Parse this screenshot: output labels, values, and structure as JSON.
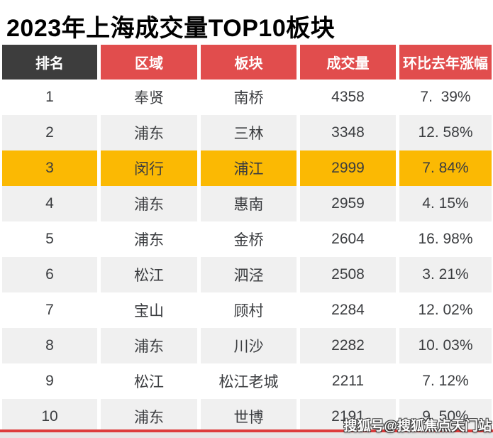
{
  "title": "2023年上海成交量TOP10板块",
  "watermark": "搜狐号@搜狐焦点天门站",
  "colors": {
    "header_dark": "#3d3d3d",
    "header_red": "#e14d4d",
    "highlight_yellow": "#fbb903",
    "row_gray": "#f0f0f0",
    "bottom_line_red": "#dd3c3c",
    "bottom_strip_gray": "#e6e6e6",
    "cell_text": "#3b3d40"
  },
  "table": {
    "columns": [
      "排名",
      "区域",
      "板块",
      "成交量",
      "环比去年涨幅"
    ],
    "rows": [
      {
        "rank": "1",
        "region": "奉贤",
        "block": "南桥",
        "volume": "4358",
        "change": "7.  39%",
        "highlight": false
      },
      {
        "rank": "2",
        "region": "浦东",
        "block": "三林",
        "volume": "3348",
        "change": "12. 58%",
        "highlight": false
      },
      {
        "rank": "3",
        "region": "闵行",
        "block": "浦江",
        "volume": "2999",
        "change": "7. 84%",
        "highlight": true
      },
      {
        "rank": "4",
        "region": "浦东",
        "block": "惠南",
        "volume": "2959",
        "change": "4. 15%",
        "highlight": false
      },
      {
        "rank": "5",
        "region": "浦东",
        "block": "金桥",
        "volume": "2604",
        "change": "16. 98%",
        "highlight": false
      },
      {
        "rank": "6",
        "region": "松江",
        "block": "泗泾",
        "volume": "2508",
        "change": "3. 21%",
        "highlight": false
      },
      {
        "rank": "7",
        "region": "宝山",
        "block": "顾村",
        "volume": "2284",
        "change": "12. 02%",
        "highlight": false
      },
      {
        "rank": "8",
        "region": "浦东",
        "block": "川沙",
        "volume": "2282",
        "change": "10. 03%",
        "highlight": false
      },
      {
        "rank": "9",
        "region": "松江",
        "block": "松江老城",
        "volume": "2211",
        "change": "7. 12%",
        "highlight": false
      },
      {
        "rank": "10",
        "region": "浦东",
        "block": "世博",
        "volume": "2191",
        "change": "9. 50%",
        "highlight": false
      }
    ]
  },
  "chart_data": {
    "type": "table",
    "title": "2023年上海成交量TOP10板块",
    "columns": [
      "排名",
      "区域",
      "板块",
      "成交量",
      "环比去年涨幅"
    ],
    "rows": [
      [
        1,
        "奉贤",
        "南桥",
        4358,
        "7.39%"
      ],
      [
        2,
        "浦东",
        "三林",
        3348,
        "12.58%"
      ],
      [
        3,
        "闵行",
        "浦江",
        2999,
        "7.84%"
      ],
      [
        4,
        "浦东",
        "惠南",
        2959,
        "4.15%"
      ],
      [
        5,
        "浦东",
        "金桥",
        2604,
        "16.98%"
      ],
      [
        6,
        "松江",
        "泗泾",
        2508,
        "3.21%"
      ],
      [
        7,
        "宝山",
        "顾村",
        2284,
        "12.02%"
      ],
      [
        8,
        "浦东",
        "川沙",
        2282,
        "10.03%"
      ],
      [
        9,
        "松江",
        "松江老城",
        2211,
        "7.12%"
      ],
      [
        10,
        "浦东",
        "世博",
        2191,
        "9.50%"
      ]
    ],
    "volumes": [
      4358,
      3348,
      2999,
      2959,
      2604,
      2508,
      2284,
      2282,
      2211,
      2191
    ],
    "yoy_change_pct": [
      7.39,
      12.58,
      7.84,
      4.15,
      16.98,
      3.21,
      12.02,
      10.03,
      7.12,
      9.5
    ],
    "highlighted_row_rank": 3
  }
}
